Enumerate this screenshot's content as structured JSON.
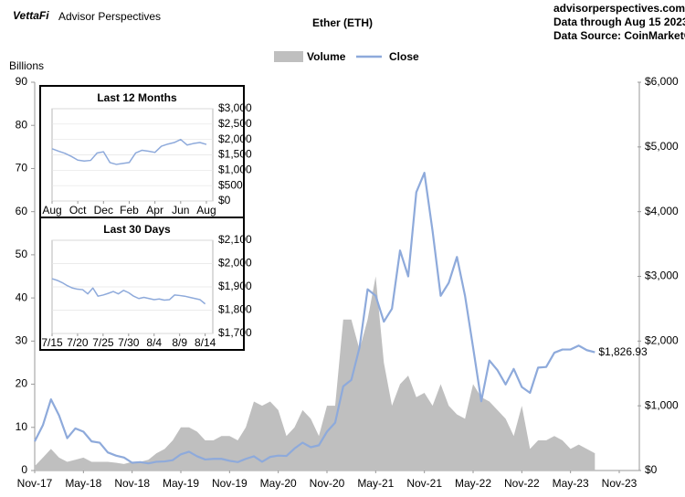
{
  "header": {
    "logo": "VettaFi",
    "brand": "Advisor Perspectives",
    "site": "advisorperspectives.com",
    "through": "Data through Aug 15 2023",
    "source": "Data Source: CoinMarketCap"
  },
  "chart_data": [
    {
      "type": "combo",
      "title": "Ether (ETH)",
      "y_label": "Billions",
      "y_axis_side": "left",
      "grid": false,
      "legend": "top",
      "x": [
        2017.833,
        2017.917,
        2018.0,
        2018.083,
        2018.167,
        2018.25,
        2018.333,
        2018.417,
        2018.5,
        2018.583,
        2018.667,
        2018.75,
        2018.833,
        2018.917,
        2019.0,
        2019.083,
        2019.167,
        2019.25,
        2019.333,
        2019.417,
        2019.5,
        2019.583,
        2019.667,
        2019.75,
        2019.833,
        2019.917,
        2020.0,
        2020.083,
        2020.167,
        2020.25,
        2020.333,
        2020.417,
        2020.5,
        2020.583,
        2020.667,
        2020.75,
        2020.833,
        2020.917,
        2021.0,
        2021.083,
        2021.167,
        2021.25,
        2021.333,
        2021.417,
        2021.5,
        2021.583,
        2021.667,
        2021.75,
        2021.833,
        2021.917,
        2022.0,
        2022.083,
        2022.167,
        2022.25,
        2022.333,
        2022.417,
        2022.5,
        2022.583,
        2022.667,
        2022.75,
        2022.833,
        2022.917,
        2023.0,
        2023.083,
        2023.167,
        2023.25,
        2023.333,
        2023.417,
        2023.5,
        2023.583
      ],
      "xlim": [
        2017.833,
        2023.833
      ],
      "xticks": [
        {
          "value": 2017.833,
          "label": "Nov-17"
        },
        {
          "value": 2018.333,
          "label": "May-18"
        },
        {
          "value": 2018.833,
          "label": "Nov-18"
        },
        {
          "value": 2019.333,
          "label": "May-19"
        },
        {
          "value": 2019.833,
          "label": "Nov-19"
        },
        {
          "value": 2020.333,
          "label": "May-20"
        },
        {
          "value": 2020.833,
          "label": "Nov-20"
        },
        {
          "value": 2021.333,
          "label": "May-21"
        },
        {
          "value": 2021.833,
          "label": "Nov-21"
        },
        {
          "value": 2022.333,
          "label": "May-22"
        },
        {
          "value": 2022.833,
          "label": "Nov-22"
        },
        {
          "value": 2023.333,
          "label": "May-23"
        },
        {
          "value": 2023.833,
          "label": "Nov-23"
        }
      ],
      "ylim": [
        0,
        90
      ],
      "yticks": [
        0,
        10,
        20,
        30,
        40,
        50,
        60,
        70,
        80,
        90
      ],
      "y2lim": [
        0,
        6000
      ],
      "y2ticks": [
        {
          "value": 0,
          "label": "$0"
        },
        {
          "value": 1000,
          "label": "$1,000"
        },
        {
          "value": 2000,
          "label": "$2,000"
        },
        {
          "value": 3000,
          "label": "$3,000"
        },
        {
          "value": 4000,
          "label": "$4,000"
        },
        {
          "value": 5000,
          "label": "$5,000"
        },
        {
          "value": 6000,
          "label": "$6,000"
        }
      ],
      "series": [
        {
          "name": "Volume",
          "type": "area",
          "color": "#bfbfbf",
          "values": [
            1,
            3,
            5,
            3,
            2,
            2.5,
            3,
            2,
            2,
            2,
            1.8,
            1.5,
            2,
            2,
            2.5,
            4,
            5,
            7,
            10,
            10,
            9,
            7,
            7,
            8,
            8,
            7,
            10,
            16,
            15,
            16,
            14,
            8,
            10,
            14,
            12,
            8,
            15,
            15,
            35,
            35,
            28,
            35,
            45,
            25,
            15,
            20,
            22,
            17,
            18,
            15,
            20,
            15,
            13,
            12,
            20,
            17,
            16,
            14,
            12,
            8,
            15,
            5,
            7,
            7,
            8,
            7,
            5,
            6,
            5,
            4
          ]
        },
        {
          "name": "Close",
          "type": "line",
          "axis": "y2",
          "color": "#8eaadb",
          "values": [
            450,
            700,
            1100,
            850,
            500,
            650,
            600,
            450,
            430,
            280,
            230,
            200,
            120,
            130,
            110,
            135,
            140,
            160,
            250,
            290,
            220,
            170,
            180,
            180,
            150,
            130,
            180,
            220,
            135,
            210,
            230,
            225,
            340,
            430,
            360,
            390,
            600,
            740,
            1300,
            1400,
            1900,
            2800,
            2700,
            2300,
            2500,
            3400,
            3000,
            4300,
            4600,
            3700,
            2700,
            2900,
            3300,
            2700,
            1900,
            1070,
            1700,
            1550,
            1330,
            1570,
            1290,
            1200,
            1590,
            1600,
            1820,
            1870,
            1870,
            1930,
            1860,
            1826.93
          ],
          "value_labels": [
            null,
            null,
            null,
            null,
            null,
            null,
            null,
            null,
            null,
            null,
            null,
            null,
            null,
            null,
            null,
            null,
            null,
            null,
            null,
            null,
            null,
            null,
            null,
            null,
            null,
            null,
            null,
            null,
            null,
            null,
            null,
            null,
            null,
            null,
            null,
            null,
            null,
            null,
            null,
            null,
            null,
            null,
            null,
            null,
            null,
            null,
            null,
            null,
            null,
            null,
            null,
            null,
            null,
            null,
            null,
            null,
            null,
            null,
            null,
            null,
            null,
            null,
            null,
            null,
            null,
            null,
            null,
            null,
            null,
            "$1,826.93"
          ]
        }
      ]
    },
    {
      "type": "line",
      "title": "Last 12 Months",
      "y_axis_side": "right",
      "grid": true,
      "x": [
        0,
        0.5,
        1,
        1.5,
        2,
        2.5,
        3,
        3.5,
        4,
        4.5,
        5,
        5.5,
        6,
        6.5,
        7,
        7.5,
        8,
        8.5,
        9,
        9.5,
        10,
        10.5,
        11,
        11.5,
        12
      ],
      "xlim": [
        0,
        12.5
      ],
      "xticks": [
        {
          "value": 0,
          "label": "Aug"
        },
        {
          "value": 2,
          "label": "Oct"
        },
        {
          "value": 4,
          "label": "Dec"
        },
        {
          "value": 6,
          "label": "Feb"
        },
        {
          "value": 8,
          "label": "Apr"
        },
        {
          "value": 10,
          "label": "Jun"
        },
        {
          "value": 12,
          "label": "Aug"
        }
      ],
      "ylim": [
        0,
        3000
      ],
      "yticks": [
        {
          "value": 0,
          "label": "$0"
        },
        {
          "value": 500,
          "label": "$500"
        },
        {
          "value": 1000,
          "label": "$1,000"
        },
        {
          "value": 1500,
          "label": "$1,500"
        },
        {
          "value": 2000,
          "label": "$2,000"
        },
        {
          "value": 2500,
          "label": "$2,500"
        },
        {
          "value": 3000,
          "label": "$3,000"
        }
      ],
      "series": [
        {
          "name": "Close",
          "type": "line",
          "color": "#8eaadb",
          "values": [
            1700,
            1620,
            1550,
            1450,
            1330,
            1300,
            1320,
            1560,
            1600,
            1250,
            1190,
            1220,
            1250,
            1560,
            1650,
            1620,
            1580,
            1780,
            1850,
            1900,
            2000,
            1820,
            1870,
            1900,
            1840
          ]
        }
      ]
    },
    {
      "type": "line",
      "title": "Last 30 Days",
      "y_axis_side": "right",
      "grid": true,
      "x": [
        0,
        1,
        2,
        3,
        4,
        5,
        6,
        7,
        8,
        9,
        10,
        11,
        12,
        13,
        14,
        15,
        16,
        17,
        18,
        19,
        20,
        21,
        22,
        23,
        24,
        25,
        26,
        27,
        28,
        29,
        30
      ],
      "xlim": [
        0,
        31.5
      ],
      "xticks": [
        {
          "value": 0,
          "label": "7/15"
        },
        {
          "value": 5,
          "label": "7/20"
        },
        {
          "value": 10,
          "label": "7/25"
        },
        {
          "value": 15,
          "label": "7/30"
        },
        {
          "value": 20,
          "label": "8/4"
        },
        {
          "value": 25,
          "label": "8/9"
        },
        {
          "value": 30,
          "label": "8/14"
        }
      ],
      "ylim": [
        1700,
        2100
      ],
      "yticks": [
        {
          "value": 1700,
          "label": "$1,700"
        },
        {
          "value": 1800,
          "label": "$1,800"
        },
        {
          "value": 1900,
          "label": "$1,900"
        },
        {
          "value": 2000,
          "label": "$2,000"
        },
        {
          "value": 2100,
          "label": "$2,100"
        }
      ],
      "series": [
        {
          "name": "Close",
          "type": "line",
          "color": "#8eaadb",
          "values": [
            1935,
            1928,
            1918,
            1905,
            1895,
            1890,
            1888,
            1870,
            1895,
            1860,
            1865,
            1872,
            1880,
            1870,
            1885,
            1875,
            1860,
            1850,
            1855,
            1850,
            1845,
            1848,
            1843,
            1845,
            1865,
            1863,
            1860,
            1855,
            1850,
            1845,
            1827
          ]
        }
      ]
    }
  ]
}
